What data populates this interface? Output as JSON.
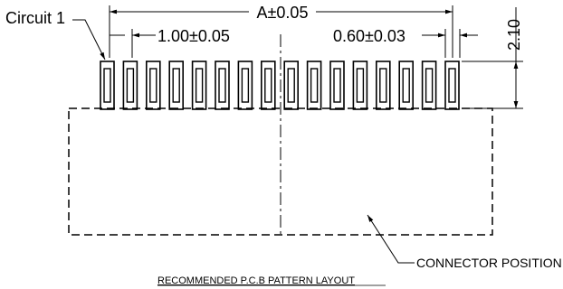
{
  "labels": {
    "circuit_1": "Circuit 1",
    "overall_dim": "A±0.05",
    "pitch_dim": "1.00±0.05",
    "pad_width_dim": "0.60±0.03",
    "pad_length_dim": "2.10",
    "connector_position": "CONNECTOR POSITION",
    "caption": "RECOMMENDED P.C.B PATTERN LAYOUT"
  },
  "pads": {
    "count": 16
  }
}
